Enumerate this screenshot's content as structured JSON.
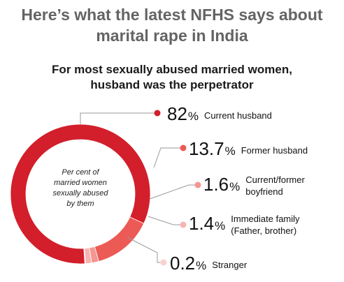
{
  "title_line1": "Here’s what the latest NFHS says about",
  "title_line2": "marital rape in India",
  "chart_data": {
    "type": "pie",
    "title": "For most sexually abused married women,",
    "title_line2": "husband was the perpetrator",
    "center_label_lines": [
      "Per cent of",
      "married women",
      "sexually abused",
      "by them"
    ],
    "unit": "%",
    "slices": [
      {
        "label_lines": [
          "Current husband"
        ],
        "value": 82,
        "value_text": "82",
        "color": "#d21f2b"
      },
      {
        "label_lines": [
          "Former husband"
        ],
        "value": 13.7,
        "value_text": "13.7",
        "color": "#ec5a55"
      },
      {
        "label_lines": [
          "Current/former",
          "boyfriend"
        ],
        "value": 1.6,
        "value_text": "1.6",
        "color": "#f49692"
      },
      {
        "label_lines": [
          "Immediate family",
          "(Father, brother)"
        ],
        "value": 1.4,
        "value_text": "1.4",
        "color": "#f7b4b0"
      },
      {
        "label_lines": [
          "Stranger"
        ],
        "value": 0.2,
        "value_text": "0.2",
        "color": "#f9d2cf"
      }
    ]
  }
}
